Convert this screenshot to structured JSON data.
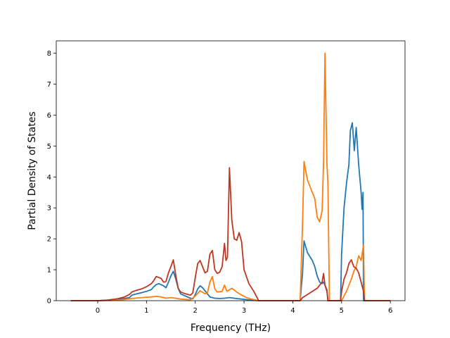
{
  "chart_data": {
    "type": "line",
    "xlabel": "Frequency (THz)",
    "ylabel": "Partial Density of States",
    "xlim": [
      -0.85,
      6.3
    ],
    "ylim": [
      0,
      8.4
    ],
    "xticks": [
      0,
      1,
      2,
      3,
      4,
      5,
      6
    ],
    "yticks": [
      0,
      1,
      2,
      3,
      4,
      5,
      6,
      7,
      8
    ],
    "grid": false,
    "series": [
      {
        "color": "#1f77b4",
        "points": [
          [
            -0.55,
            0
          ],
          [
            0.0,
            0
          ],
          [
            0.3,
            0.02
          ],
          [
            0.5,
            0.06
          ],
          [
            0.65,
            0.1
          ],
          [
            0.7,
            0.18
          ],
          [
            0.8,
            0.22
          ],
          [
            0.9,
            0.26
          ],
          [
            1.0,
            0.3
          ],
          [
            1.1,
            0.36
          ],
          [
            1.15,
            0.45
          ],
          [
            1.2,
            0.52
          ],
          [
            1.25,
            0.55
          ],
          [
            1.3,
            0.52
          ],
          [
            1.35,
            0.48
          ],
          [
            1.4,
            0.42
          ],
          [
            1.45,
            0.6
          ],
          [
            1.5,
            0.8
          ],
          [
            1.55,
            0.95
          ],
          [
            1.6,
            0.7
          ],
          [
            1.65,
            0.4
          ],
          [
            1.7,
            0.22
          ],
          [
            1.8,
            0.15
          ],
          [
            1.9,
            0.08
          ],
          [
            1.95,
            0.06
          ],
          [
            2.0,
            0.2
          ],
          [
            2.05,
            0.38
          ],
          [
            2.1,
            0.48
          ],
          [
            2.15,
            0.42
          ],
          [
            2.2,
            0.32
          ],
          [
            2.25,
            0.22
          ],
          [
            2.3,
            0.12
          ],
          [
            2.35,
            0.1
          ],
          [
            2.4,
            0.08
          ],
          [
            2.5,
            0.07
          ],
          [
            2.6,
            0.08
          ],
          [
            2.7,
            0.1
          ],
          [
            2.8,
            0.08
          ],
          [
            2.9,
            0.06
          ],
          [
            3.0,
            0.04
          ],
          [
            3.2,
            0.01
          ],
          [
            3.3,
            0
          ],
          [
            4.15,
            0
          ],
          [
            4.2,
            0.9
          ],
          [
            4.23,
            1.93
          ],
          [
            4.3,
            1.55
          ],
          [
            4.4,
            1.3
          ],
          [
            4.45,
            1.1
          ],
          [
            4.5,
            0.8
          ],
          [
            4.55,
            0.6
          ],
          [
            4.6,
            0.55
          ],
          [
            4.63,
            0.6
          ],
          [
            4.66,
            0.5
          ],
          [
            4.7,
            0.35
          ],
          [
            4.72,
            0
          ],
          [
            4.98,
            0
          ],
          [
            5.0,
            1.5
          ],
          [
            5.05,
            3.0
          ],
          [
            5.1,
            3.8
          ],
          [
            5.15,
            4.4
          ],
          [
            5.18,
            5.5
          ],
          [
            5.22,
            5.75
          ],
          [
            5.26,
            4.85
          ],
          [
            5.3,
            5.6
          ],
          [
            5.35,
            4.4
          ],
          [
            5.4,
            3.5
          ],
          [
            5.42,
            2.95
          ],
          [
            5.44,
            3.5
          ],
          [
            5.45,
            0
          ],
          [
            6.0,
            0
          ]
        ]
      },
      {
        "color": "#ff7f0e",
        "points": [
          [
            -0.55,
            0
          ],
          [
            0.0,
            0
          ],
          [
            0.3,
            0.01
          ],
          [
            0.5,
            0.03
          ],
          [
            0.7,
            0.07
          ],
          [
            0.9,
            0.1
          ],
          [
            1.1,
            0.12
          ],
          [
            1.2,
            0.14
          ],
          [
            1.3,
            0.12
          ],
          [
            1.4,
            0.08
          ],
          [
            1.5,
            0.1
          ],
          [
            1.6,
            0.08
          ],
          [
            1.7,
            0.05
          ],
          [
            1.9,
            0.03
          ],
          [
            2.0,
            0.15
          ],
          [
            2.1,
            0.32
          ],
          [
            2.2,
            0.22
          ],
          [
            2.25,
            0.25
          ],
          [
            2.3,
            0.6
          ],
          [
            2.35,
            0.78
          ],
          [
            2.4,
            0.38
          ],
          [
            2.45,
            0.28
          ],
          [
            2.55,
            0.3
          ],
          [
            2.6,
            0.5
          ],
          [
            2.65,
            0.3
          ],
          [
            2.75,
            0.4
          ],
          [
            2.85,
            0.28
          ],
          [
            2.95,
            0.18
          ],
          [
            3.05,
            0.1
          ],
          [
            3.15,
            0.05
          ],
          [
            3.3,
            0
          ],
          [
            4.15,
            0
          ],
          [
            4.2,
            2.5
          ],
          [
            4.23,
            4.5
          ],
          [
            4.3,
            3.9
          ],
          [
            4.4,
            3.5
          ],
          [
            4.45,
            3.3
          ],
          [
            4.5,
            2.7
          ],
          [
            4.55,
            2.55
          ],
          [
            4.6,
            2.9
          ],
          [
            4.63,
            4.5
          ],
          [
            4.66,
            8.0
          ],
          [
            4.7,
            4.4
          ],
          [
            4.72,
            3.8
          ],
          [
            4.75,
            0
          ],
          [
            5.0,
            0
          ],
          [
            5.1,
            0.3
          ],
          [
            5.2,
            0.7
          ],
          [
            5.25,
            0.95
          ],
          [
            5.3,
            1.1
          ],
          [
            5.35,
            1.45
          ],
          [
            5.4,
            1.3
          ],
          [
            5.45,
            1.8
          ],
          [
            5.47,
            0
          ],
          [
            6.0,
            0
          ]
        ]
      },
      {
        "color": "#bf3520",
        "points": [
          [
            -0.55,
            0
          ],
          [
            0.0,
            0
          ],
          [
            0.2,
            0.02
          ],
          [
            0.4,
            0.06
          ],
          [
            0.55,
            0.12
          ],
          [
            0.65,
            0.2
          ],
          [
            0.7,
            0.28
          ],
          [
            0.8,
            0.34
          ],
          [
            0.9,
            0.38
          ],
          [
            1.0,
            0.45
          ],
          [
            1.1,
            0.55
          ],
          [
            1.15,
            0.65
          ],
          [
            1.2,
            0.78
          ],
          [
            1.25,
            0.75
          ],
          [
            1.3,
            0.72
          ],
          [
            1.35,
            0.6
          ],
          [
            1.4,
            0.62
          ],
          [
            1.45,
            0.9
          ],
          [
            1.5,
            1.1
          ],
          [
            1.55,
            1.32
          ],
          [
            1.6,
            0.82
          ],
          [
            1.65,
            0.4
          ],
          [
            1.7,
            0.28
          ],
          [
            1.8,
            0.22
          ],
          [
            1.9,
            0.18
          ],
          [
            1.95,
            0.25
          ],
          [
            2.0,
            0.75
          ],
          [
            2.05,
            1.2
          ],
          [
            2.1,
            1.3
          ],
          [
            2.15,
            1.1
          ],
          [
            2.2,
            0.9
          ],
          [
            2.25,
            0.95
          ],
          [
            2.3,
            1.5
          ],
          [
            2.35,
            1.62
          ],
          [
            2.4,
            1.0
          ],
          [
            2.45,
            0.88
          ],
          [
            2.5,
            0.92
          ],
          [
            2.55,
            1.1
          ],
          [
            2.6,
            1.85
          ],
          [
            2.63,
            1.3
          ],
          [
            2.66,
            1.4
          ],
          [
            2.7,
            4.3
          ],
          [
            2.75,
            2.6
          ],
          [
            2.8,
            2.0
          ],
          [
            2.85,
            1.95
          ],
          [
            2.9,
            2.2
          ],
          [
            2.95,
            1.9
          ],
          [
            3.0,
            1.0
          ],
          [
            3.1,
            0.55
          ],
          [
            3.2,
            0.3
          ],
          [
            3.3,
            0
          ],
          [
            4.15,
            0
          ],
          [
            4.2,
            0.1
          ],
          [
            4.3,
            0.2
          ],
          [
            4.4,
            0.3
          ],
          [
            4.5,
            0.4
          ],
          [
            4.55,
            0.5
          ],
          [
            4.6,
            0.6
          ],
          [
            4.63,
            0.88
          ],
          [
            4.66,
            0.5
          ],
          [
            4.7,
            0.3
          ],
          [
            4.72,
            0
          ],
          [
            4.98,
            0
          ],
          [
            5.0,
            0.3
          ],
          [
            5.05,
            0.7
          ],
          [
            5.1,
            0.9
          ],
          [
            5.15,
            1.2
          ],
          [
            5.2,
            1.32
          ],
          [
            5.25,
            1.1
          ],
          [
            5.3,
            1.05
          ],
          [
            5.35,
            0.9
          ],
          [
            5.4,
            0.6
          ],
          [
            5.45,
            0.3
          ],
          [
            5.47,
            0
          ],
          [
            6.0,
            0
          ]
        ]
      }
    ]
  }
}
